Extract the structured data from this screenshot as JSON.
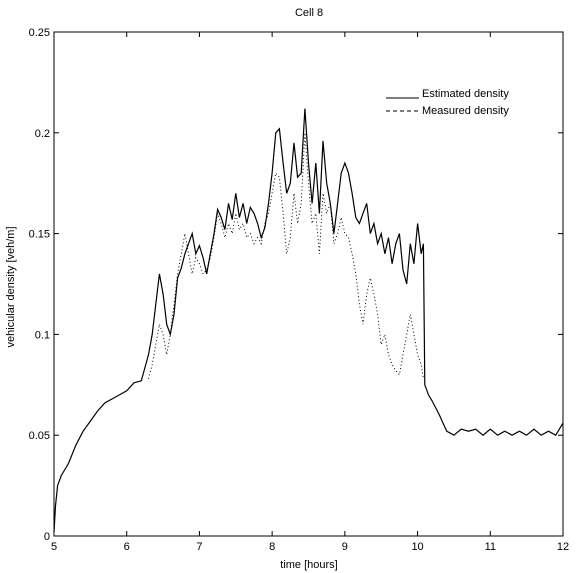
{
  "chart_data": {
    "type": "line",
    "title": "Cell 8",
    "xlabel": "time [hours]",
    "ylabel": "vehicular density [veh/m]",
    "xlim": [
      5,
      12
    ],
    "ylim": [
      0,
      0.25
    ],
    "xticks": [
      "5",
      "6",
      "7",
      "8",
      "9",
      "10",
      "11",
      "12"
    ],
    "yticks": [
      "0",
      "0.05",
      "0.1",
      "0.15",
      "0.2",
      "0.25"
    ],
    "grid": false,
    "legend_position": "top-right",
    "series": [
      {
        "name": "Estimated density",
        "style": "solid",
        "color": "#000000",
        "x": [
          5.0,
          5.02,
          5.05,
          5.1,
          5.2,
          5.3,
          5.4,
          5.5,
          5.6,
          5.7,
          5.8,
          5.9,
          6.0,
          6.1,
          6.2,
          6.3,
          6.35,
          6.4,
          6.45,
          6.5,
          6.55,
          6.6,
          6.65,
          6.7,
          6.75,
          6.8,
          6.85,
          6.9,
          6.95,
          7.0,
          7.05,
          7.1,
          7.15,
          7.2,
          7.25,
          7.3,
          7.35,
          7.4,
          7.45,
          7.5,
          7.55,
          7.6,
          7.65,
          7.7,
          7.75,
          7.8,
          7.85,
          7.9,
          7.95,
          8.0,
          8.05,
          8.1,
          8.15,
          8.2,
          8.25,
          8.3,
          8.35,
          8.4,
          8.45,
          8.5,
          8.55,
          8.6,
          8.65,
          8.7,
          8.75,
          8.8,
          8.85,
          8.9,
          8.95,
          9.0,
          9.05,
          9.1,
          9.15,
          9.2,
          9.25,
          9.3,
          9.35,
          9.4,
          9.45,
          9.5,
          9.55,
          9.6,
          9.65,
          9.7,
          9.75,
          9.8,
          9.85,
          9.9,
          9.95,
          10.0,
          10.05,
          10.08,
          10.1,
          10.15,
          10.2,
          10.3,
          10.4,
          10.5,
          10.6,
          10.7,
          10.8,
          10.9,
          11.0,
          11.1,
          11.2,
          11.3,
          11.4,
          11.5,
          11.6,
          11.7,
          11.8,
          11.9,
          12.0
        ],
        "y": [
          0.002,
          0.015,
          0.025,
          0.03,
          0.036,
          0.045,
          0.052,
          0.057,
          0.062,
          0.066,
          0.068,
          0.07,
          0.072,
          0.076,
          0.077,
          0.09,
          0.1,
          0.115,
          0.13,
          0.12,
          0.105,
          0.1,
          0.11,
          0.128,
          0.133,
          0.14,
          0.145,
          0.15,
          0.14,
          0.144,
          0.138,
          0.13,
          0.14,
          0.15,
          0.162,
          0.158,
          0.152,
          0.165,
          0.157,
          0.17,
          0.158,
          0.165,
          0.155,
          0.163,
          0.16,
          0.155,
          0.148,
          0.153,
          0.165,
          0.18,
          0.2,
          0.202,
          0.185,
          0.17,
          0.175,
          0.195,
          0.178,
          0.18,
          0.212,
          0.185,
          0.165,
          0.185,
          0.16,
          0.196,
          0.175,
          0.165,
          0.15,
          0.165,
          0.18,
          0.185,
          0.18,
          0.17,
          0.158,
          0.155,
          0.16,
          0.165,
          0.15,
          0.155,
          0.145,
          0.15,
          0.14,
          0.148,
          0.135,
          0.145,
          0.15,
          0.132,
          0.125,
          0.145,
          0.135,
          0.155,
          0.14,
          0.145,
          0.075,
          0.07,
          0.067,
          0.06,
          0.052,
          0.05,
          0.053,
          0.052,
          0.053,
          0.05,
          0.053,
          0.05,
          0.052,
          0.05,
          0.052,
          0.05,
          0.053,
          0.05,
          0.052,
          0.05,
          0.056
        ]
      },
      {
        "name": "Measured density",
        "style": "dotted",
        "color": "#000000",
        "x": [
          6.3,
          6.35,
          6.4,
          6.45,
          6.5,
          6.55,
          6.6,
          6.65,
          6.7,
          6.75,
          6.8,
          6.85,
          6.9,
          6.95,
          7.0,
          7.05,
          7.1,
          7.15,
          7.2,
          7.25,
          7.3,
          7.35,
          7.4,
          7.45,
          7.5,
          7.55,
          7.6,
          7.65,
          7.7,
          7.75,
          7.8,
          7.85,
          7.9,
          7.95,
          8.0,
          8.05,
          8.1,
          8.15,
          8.2,
          8.25,
          8.3,
          8.35,
          8.4,
          8.45,
          8.5,
          8.55,
          8.6,
          8.65,
          8.7,
          8.75,
          8.8,
          8.85,
          8.9,
          8.95,
          9.0,
          9.05,
          9.1,
          9.15,
          9.2,
          9.25,
          9.3,
          9.35,
          9.4,
          9.45,
          9.5,
          9.55,
          9.6,
          9.65,
          9.7,
          9.75,
          9.8,
          9.85,
          9.9,
          9.95,
          10.0,
          10.05,
          10.08
        ],
        "y": [
          0.078,
          0.085,
          0.095,
          0.105,
          0.1,
          0.09,
          0.1,
          0.115,
          0.13,
          0.14,
          0.15,
          0.14,
          0.13,
          0.138,
          0.135,
          0.13,
          0.132,
          0.138,
          0.148,
          0.16,
          0.155,
          0.148,
          0.155,
          0.15,
          0.16,
          0.152,
          0.155,
          0.148,
          0.15,
          0.145,
          0.148,
          0.145,
          0.155,
          0.16,
          0.17,
          0.18,
          0.178,
          0.16,
          0.14,
          0.148,
          0.17,
          0.155,
          0.165,
          0.2,
          0.175,
          0.155,
          0.16,
          0.14,
          0.17,
          0.16,
          0.165,
          0.145,
          0.15,
          0.158,
          0.15,
          0.148,
          0.14,
          0.13,
          0.115,
          0.105,
          0.12,
          0.128,
          0.12,
          0.11,
          0.095,
          0.1,
          0.09,
          0.085,
          0.082,
          0.08,
          0.09,
          0.1,
          0.11,
          0.1,
          0.09,
          0.085,
          0.078
        ]
      }
    ]
  }
}
